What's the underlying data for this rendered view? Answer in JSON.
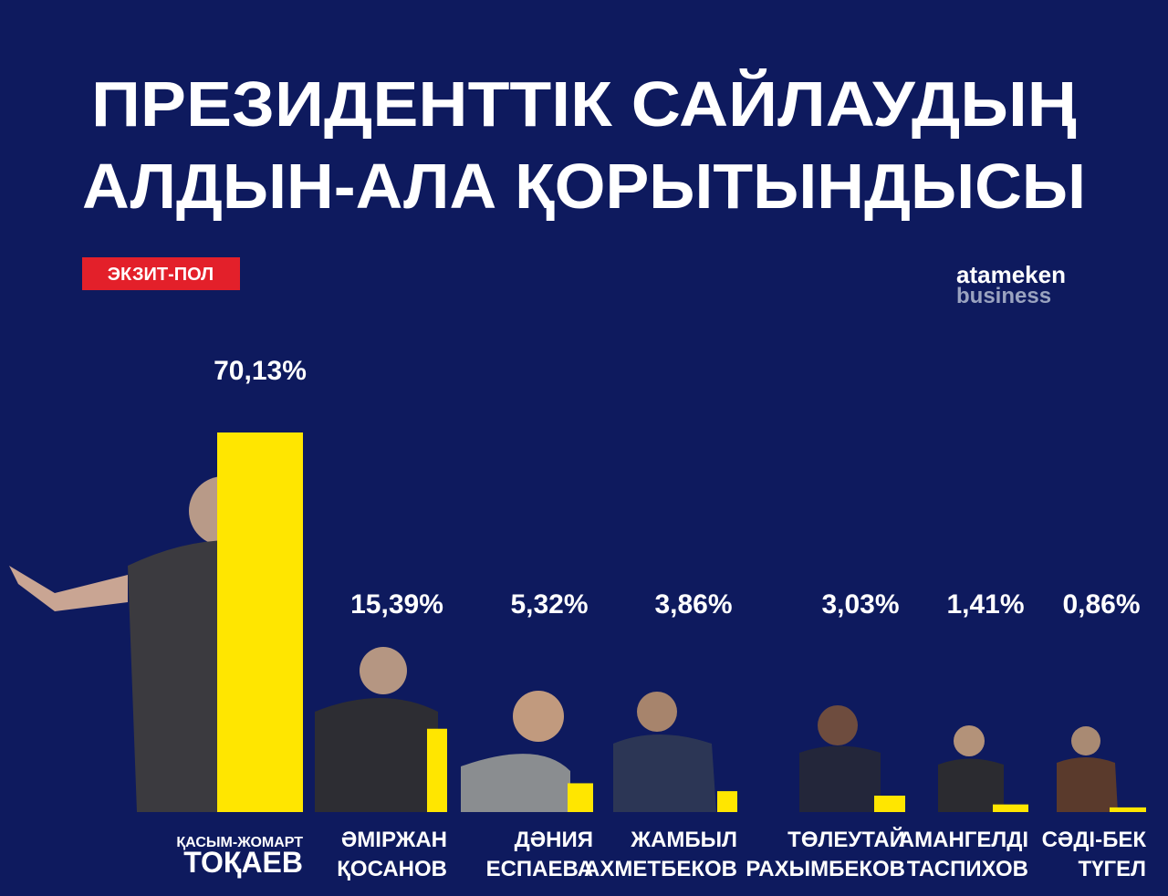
{
  "chart_data": {
    "type": "bar",
    "title": [
      "ПРЕЗИДЕНТТІК САЙЛАУДЫҢ",
      "АЛДЫН-АЛА ҚОРЫТЫНДЫСЫ"
    ],
    "badge": "ЭКЗИТ-ПОЛ",
    "logo": [
      "atameken",
      "business"
    ],
    "categories": [
      [
        "ҚАСЫМ-ЖОМАРТ",
        "ТОҚАЕВ"
      ],
      [
        "ӘМІРЖАН",
        "ҚОСАНОВ"
      ],
      [
        "ДӘНИЯ",
        "ЕСПАЕВА"
      ],
      [
        "ЖАМБЫЛ",
        "АХМЕТБЕКОВ"
      ],
      [
        "ТӨЛЕУТАЙ",
        "РАХЫМБЕКОВ"
      ],
      [
        "АМАНГЕЛДІ",
        "ТАСПИХОВ"
      ],
      [
        "СӘДІ-БЕК",
        "ТҮГЕЛ"
      ]
    ],
    "values": [
      70.13,
      15.39,
      5.32,
      3.86,
      3.03,
      1.41,
      0.86
    ],
    "value_labels": [
      "70,13%",
      "15,39%",
      "5,32%",
      "3,86%",
      "3,03%",
      "1,41%",
      "0,86%"
    ],
    "color": "#ffe600"
  }
}
